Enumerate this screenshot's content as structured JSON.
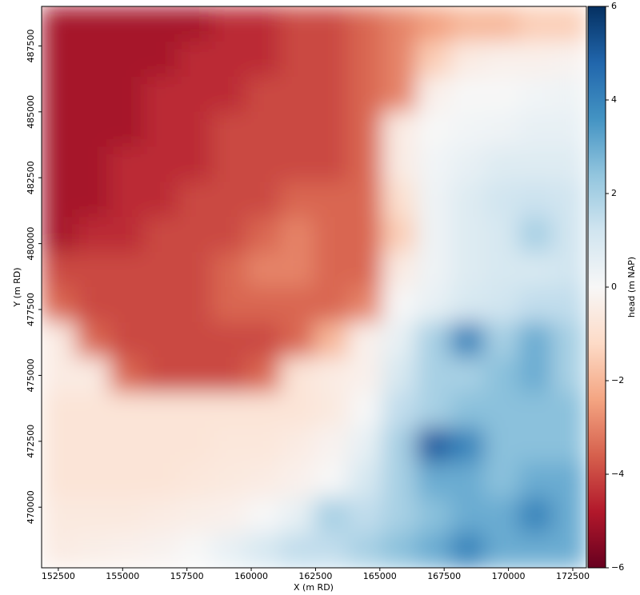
{
  "chart_data": {
    "type": "heatmap",
    "colormap": "RdBu",
    "clim": [
      -6,
      6
    ],
    "xlabel": "X (m RD)",
    "ylabel": "Y (m RD)",
    "colorbar_label": "head (m NAP)",
    "xlim": [
      151850,
      173030
    ],
    "ylim": [
      467700,
      489000
    ],
    "xticks": [
      152500,
      155000,
      157500,
      160000,
      162500,
      165000,
      167500,
      170000,
      172500
    ],
    "yticks": [
      470000,
      472500,
      475000,
      477500,
      480000,
      482500,
      485000,
      487500
    ],
    "colorbar_ticks": [
      {
        "value": -6,
        "label": "−6"
      },
      {
        "value": -4,
        "label": "−4"
      },
      {
        "value": -2,
        "label": "−2"
      },
      0,
      2,
      4,
      6
    ],
    "z": [
      [
        -5,
        -5,
        -5,
        -5,
        -5,
        -4.5,
        -4.5,
        -4,
        -4,
        -3.5,
        -3,
        -2.5,
        -2,
        -2,
        -1.5,
        -1.5
      ],
      [
        -5,
        -5,
        -5,
        -5,
        -4.5,
        -4.5,
        -4.5,
        -4,
        -4,
        -3.5,
        -3,
        -1.5,
        -0.5,
        -0.3,
        -0.3,
        -0.2
      ],
      [
        -5,
        -5,
        -5,
        -4.5,
        -4.5,
        -4.5,
        -4,
        -4,
        -4,
        -3.5,
        -3,
        -0.3,
        0,
        0,
        0.2,
        0.3
      ],
      [
        -5,
        -5,
        -5,
        -4.5,
        -4.5,
        -4,
        -4,
        -4,
        -4,
        -3.5,
        -0.5,
        0,
        0.2,
        0.3,
        0.5,
        0.5
      ],
      [
        -5,
        -5,
        -4.5,
        -4.5,
        -4.5,
        -4,
        -4,
        -4,
        -4,
        -3.5,
        -0.5,
        0.2,
        0.5,
        0.8,
        0.8,
        0.8
      ],
      [
        -5,
        -5,
        -4.5,
        -4.5,
        -4,
        -4,
        -4,
        -3.5,
        -3.5,
        -3.5,
        -1,
        0.3,
        0.8,
        1.2,
        1.3,
        1.2
      ],
      [
        -5,
        -4.5,
        -4.5,
        -4,
        -4,
        -4,
        -3.5,
        -3,
        -3.5,
        -3.5,
        -1.5,
        0.3,
        0.8,
        1,
        2,
        1.2
      ],
      [
        -4,
        -4,
        -4,
        -4,
        -4,
        -3.5,
        -3,
        -3,
        -3.5,
        -3.5,
        -0.5,
        0.3,
        0.8,
        1,
        1,
        1.2
      ],
      [
        -3.5,
        -4,
        -4,
        -4,
        -4,
        -3.5,
        -3.5,
        -3.5,
        -3.5,
        -3,
        0,
        0.5,
        1,
        1.2,
        1.5,
        1.5
      ],
      [
        -0.5,
        -3.5,
        -4,
        -4,
        -4,
        -4,
        -4,
        -3.5,
        -2,
        -0.3,
        0.5,
        2,
        4,
        2,
        3,
        2
      ],
      [
        -0.5,
        -0.5,
        -3.5,
        -4,
        -4,
        -4,
        -3.5,
        -0.8,
        -0.5,
        -0.3,
        1,
        2,
        2,
        2.5,
        3,
        2
      ],
      [
        -0.8,
        -0.8,
        -0.8,
        -0.8,
        -0.8,
        -0.8,
        -0.8,
        -0.8,
        -0.6,
        0,
        1.5,
        2,
        2.5,
        2.5,
        2.5,
        2.5
      ],
      [
        -0.8,
        -0.8,
        -0.8,
        -0.8,
        -0.8,
        -0.7,
        -0.7,
        -0.5,
        -0.2,
        0.5,
        2,
        5,
        4,
        2.5,
        2.5,
        2.5
      ],
      [
        -0.8,
        -0.8,
        -0.8,
        -0.8,
        -0.7,
        -0.6,
        -0.5,
        -0.3,
        0,
        1,
        2,
        3,
        3,
        2.5,
        3,
        3
      ],
      [
        -0.6,
        -0.6,
        -0.6,
        -0.5,
        -0.4,
        -0.3,
        0,
        0.5,
        2,
        1.5,
        2,
        2.5,
        3,
        3,
        4,
        3
      ],
      [
        -0.5,
        -0.4,
        -0.3,
        -0.2,
        0,
        0.5,
        1,
        1.5,
        1.5,
        2,
        2.5,
        3,
        4,
        3,
        3,
        3
      ]
    ]
  }
}
